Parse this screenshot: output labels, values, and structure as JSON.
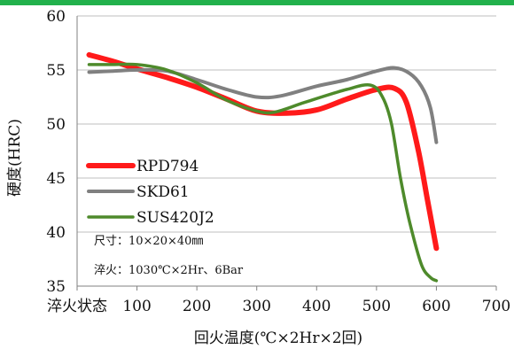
{
  "chart_data": {
    "type": "line",
    "xlabel": "回火温度(℃×2Hr×2回)",
    "ylabel": "硬度(HRC)",
    "xlim": [
      0,
      700
    ],
    "ylim": [
      35,
      60
    ],
    "x_ticks": [
      {
        "value": 0,
        "label": "淬火状态"
      },
      {
        "value": 100,
        "label": "100"
      },
      {
        "value": 200,
        "label": "200"
      },
      {
        "value": 300,
        "label": "300"
      },
      {
        "value": 400,
        "label": "400"
      },
      {
        "value": 500,
        "label": "500"
      },
      {
        "value": 600,
        "label": "600"
      },
      {
        "value": 700,
        "label": "700"
      }
    ],
    "y_ticks": [
      35,
      40,
      45,
      50,
      55,
      60
    ],
    "grid": {
      "horizontal": true,
      "vertical": false
    },
    "legend_position": "left-middle",
    "series": [
      {
        "name": "RPD794",
        "color": "#ff1a1a",
        "points": [
          [
            20,
            56.4
          ],
          [
            60,
            55.8
          ],
          [
            100,
            55.1
          ],
          [
            150,
            54.3
          ],
          [
            200,
            53.4
          ],
          [
            250,
            52.3
          ],
          [
            300,
            51.2
          ],
          [
            350,
            51.0
          ],
          [
            400,
            51.3
          ],
          [
            450,
            52.3
          ],
          [
            500,
            53.2
          ],
          [
            530,
            53.3
          ],
          [
            550,
            52.0
          ],
          [
            570,
            47.5
          ],
          [
            585,
            43.0
          ],
          [
            600,
            38.5
          ]
        ]
      },
      {
        "name": "SKD61",
        "color": "#808080",
        "points": [
          [
            20,
            54.8
          ],
          [
            60,
            54.9
          ],
          [
            100,
            55.0
          ],
          [
            150,
            54.9
          ],
          [
            200,
            54.1
          ],
          [
            250,
            53.2
          ],
          [
            300,
            52.5
          ],
          [
            340,
            52.6
          ],
          [
            400,
            53.5
          ],
          [
            450,
            54.1
          ],
          [
            500,
            54.9
          ],
          [
            530,
            55.2
          ],
          [
            555,
            54.7
          ],
          [
            575,
            53.5
          ],
          [
            590,
            51.5
          ],
          [
            600,
            48.3
          ]
        ]
      },
      {
        "name": "SUS420J2",
        "color": "#4e8a2b",
        "points": [
          [
            20,
            55.5
          ],
          [
            60,
            55.5
          ],
          [
            100,
            55.5
          ],
          [
            150,
            55.0
          ],
          [
            200,
            53.8
          ],
          [
            250,
            52.2
          ],
          [
            300,
            51.2
          ],
          [
            330,
            51.1
          ],
          [
            380,
            52.0
          ],
          [
            450,
            53.2
          ],
          [
            490,
            53.6
          ],
          [
            510,
            52.5
          ],
          [
            525,
            50.0
          ],
          [
            540,
            45.0
          ],
          [
            555,
            41.0
          ],
          [
            575,
            37.0
          ],
          [
            590,
            35.8
          ],
          [
            600,
            35.5
          ]
        ]
      }
    ],
    "annotations": [
      "尺寸：10×20×40㎜",
      "淬火：1030℃×2Hr、6Bar"
    ]
  }
}
